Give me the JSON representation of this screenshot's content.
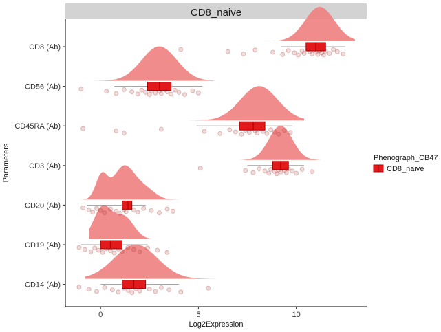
{
  "chart_data": {
    "type": "raincloud",
    "title": "CD8_naive",
    "xlabel": "Log2Expression",
    "ylabel": "Parameters",
    "xlim": [
      -1.8,
      13.6
    ],
    "xticks": [
      0,
      5,
      10
    ],
    "grid": false,
    "legend": {
      "title": "Phenograph_CB47",
      "entries": [
        "CD8_naive"
      ],
      "position": "right"
    },
    "colors": {
      "density": "#f08080",
      "box": "#e31a1c",
      "box_border": "#b30000",
      "points": "#a83232",
      "strip": "#d3d3d3"
    },
    "categories": [
      "CD8 (Ab)",
      "CD56 (Ab)",
      "CD45RA (Ab)",
      "CD3 (Ab)",
      "CD20 (Ab)",
      "CD19 (Ab)",
      "CD14 (Ab)"
    ],
    "series": [
      {
        "category": "CD8 (Ab)",
        "box": {
          "q1": 10.5,
          "median": 11.0,
          "q3": 11.5,
          "whisker_low": 9.2,
          "whisker_high": 12.5
        },
        "density": {
          "xmin": 3.2,
          "xmax": 13.0,
          "peaks": [
            {
              "mean": 11.2,
              "sd": 0.75,
              "weight": 1.0
            }
          ]
        },
        "points": [
          4.1,
          6.5,
          7.3,
          7.9,
          8.8,
          9.3,
          9.6,
          9.9,
          10.1,
          10.3,
          10.4,
          10.6,
          10.7,
          10.8,
          10.9,
          11.0,
          11.1,
          11.2,
          11.3,
          11.4,
          11.5,
          11.7,
          11.9,
          12.1,
          12.4
        ]
      },
      {
        "category": "CD56 (Ab)",
        "box": {
          "q1": 2.4,
          "median": 3.0,
          "q3": 3.6,
          "whisker_low": 0.7,
          "whisker_high": 5.2
        },
        "density": {
          "xmin": -0.6,
          "xmax": 5.8,
          "peaks": [
            {
              "mean": 3.0,
              "sd": 0.9,
              "weight": 1.0
            }
          ]
        },
        "points": [
          -1.0,
          0.3,
          0.8,
          1.2,
          1.6,
          1.9,
          2.1,
          2.3,
          2.5,
          2.6,
          2.8,
          2.9,
          3.0,
          3.1,
          3.3,
          3.4,
          3.6,
          3.8,
          4.0,
          4.3,
          4.7,
          5.0
        ]
      },
      {
        "category": "CD45RA (Ab)",
        "box": {
          "q1": 7.1,
          "median": 7.8,
          "q3": 8.4,
          "whisker_low": 4.9,
          "whisker_high": 9.8
        },
        "density": {
          "xmin": -0.8,
          "xmax": 10.4,
          "peaks": [
            {
              "mean": 8.1,
              "sd": 0.95,
              "weight": 1.0
            }
          ]
        },
        "points": [
          -0.9,
          0.8,
          1.2,
          3.1,
          5.3,
          6.1,
          6.6,
          6.9,
          7.2,
          7.4,
          7.6,
          7.7,
          7.9,
          8.0,
          8.2,
          8.3,
          8.5,
          8.7,
          8.9,
          9.1,
          9.4,
          9.7
        ]
      },
      {
        "category": "CD3 (Ab)",
        "box": {
          "q1": 8.8,
          "median": 9.2,
          "q3": 9.6,
          "whisker_low": 7.5,
          "whisker_high": 10.4
        },
        "density": {
          "xmin": 5.6,
          "xmax": 11.7,
          "peaks": [
            {
              "mean": 9.2,
              "sd": 0.6,
              "weight": 1.0
            }
          ]
        },
        "points": [
          5.1,
          7.4,
          7.8,
          8.1,
          8.4,
          8.6,
          8.7,
          8.9,
          9.0,
          9.1,
          9.2,
          9.3,
          9.4,
          9.5,
          9.6,
          9.8,
          10.0,
          10.3,
          10.8
        ]
      },
      {
        "category": "CD20 (Ab)",
        "box": {
          "q1": 1.1,
          "median": 1.4,
          "q3": 1.6,
          "whisker_low": -0.7,
          "whisker_high": 2.3
        },
        "density": {
          "xmin": -1.0,
          "xmax": 4.1,
          "peaks": [
            {
              "mean": 0.05,
              "sd": 0.3,
              "weight": 0.7
            },
            {
              "mean": 1.2,
              "sd": 0.55,
              "weight": 1.0
            },
            {
              "mean": 2.3,
              "sd": 0.5,
              "weight": 0.3
            }
          ]
        },
        "points": [
          -0.9,
          -0.6,
          -0.4,
          -0.2,
          0.0,
          0.2,
          0.5,
          0.8,
          1.0,
          1.2,
          1.3,
          1.5,
          1.7,
          1.9,
          2.2,
          2.6,
          3.0,
          3.4,
          3.7
        ]
      },
      {
        "category": "CD19 (Ab)",
        "box": {
          "q1": 0.0,
          "median": 0.5,
          "q3": 1.1,
          "whisker_low": -1.0,
          "whisker_high": 2.4
        },
        "density": {
          "xmin": -0.6,
          "xmax": 3.7,
          "peaks": [
            {
              "mean": 0.1,
              "sd": 0.45,
              "weight": 1.0
            },
            {
              "mean": 1.2,
              "sd": 0.5,
              "weight": 0.7
            }
          ]
        },
        "points": [
          -1.1,
          -0.8,
          -0.5,
          -0.3,
          -0.1,
          0.1,
          0.3,
          0.5,
          0.7,
          0.9,
          1.1,
          1.4,
          1.7,
          2.0,
          2.4,
          2.9,
          3.4
        ]
      },
      {
        "category": "CD14 (Ab)",
        "box": {
          "q1": 1.1,
          "median": 1.7,
          "q3": 2.3,
          "whisker_low": 0.0,
          "whisker_high": 4.0
        },
        "density": {
          "xmin": -0.8,
          "xmax": 6.4,
          "peaks": [
            {
              "mean": 1.8,
              "sd": 1.1,
              "weight": 1.0
            }
          ]
        },
        "points": [
          -1.1,
          -0.6,
          -0.2,
          0.2,
          0.6,
          0.9,
          1.2,
          1.4,
          1.6,
          1.8,
          2.0,
          2.2,
          2.5,
          2.8,
          3.1,
          3.5,
          4.1,
          5.5
        ]
      }
    ]
  }
}
